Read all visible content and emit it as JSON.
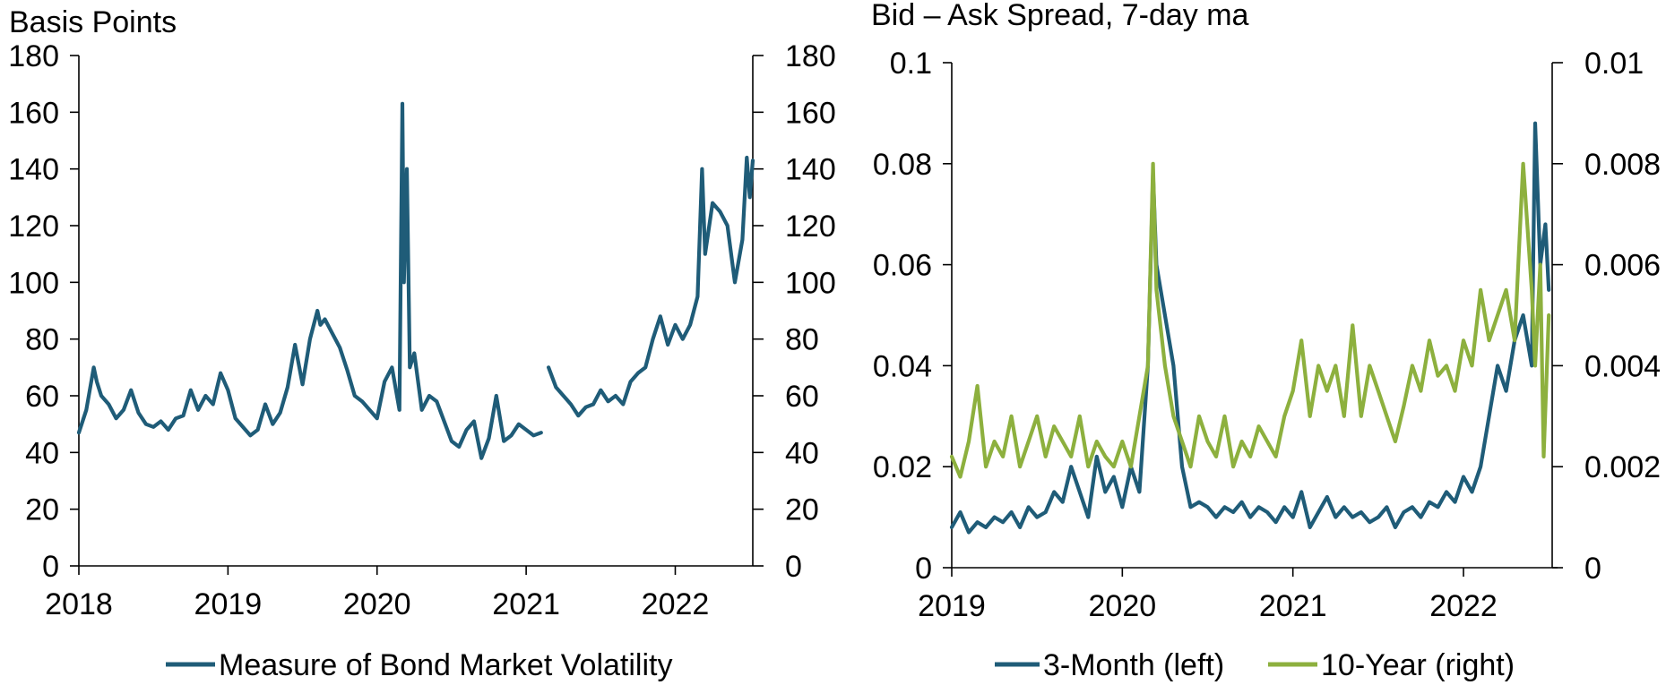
{
  "colors": {
    "teal": "#1f5c78",
    "green": "#8db03e"
  },
  "chart_data": [
    {
      "type": "line",
      "title": "Basis Points",
      "x_ticks": [
        "2018",
        "2019",
        "2020",
        "2021",
        "2022"
      ],
      "y_ticks_left": [
        "0",
        "20",
        "40",
        "60",
        "80",
        "100",
        "120",
        "140",
        "160",
        "180"
      ],
      "y_ticks_right": [
        "0",
        "20",
        "40",
        "60",
        "80",
        "100",
        "120",
        "140",
        "160",
        "180"
      ],
      "xlim": [
        2018.0,
        2022.52
      ],
      "ylim": [
        0,
        180
      ],
      "grid": false,
      "legend": "bottom",
      "series": [
        {
          "name": "Measure of Bond Market Volatility",
          "color": "#1f5c78",
          "x": [
            2018.0,
            2018.05,
            2018.1,
            2018.12,
            2018.15,
            2018.2,
            2018.25,
            2018.3,
            2018.35,
            2018.4,
            2018.45,
            2018.5,
            2018.55,
            2018.6,
            2018.65,
            2018.7,
            2018.75,
            2018.8,
            2018.85,
            2018.9,
            2018.95,
            2019.0,
            2019.05,
            2019.1,
            2019.15,
            2019.2,
            2019.25,
            2019.3,
            2019.35,
            2019.4,
            2019.45,
            2019.5,
            2019.55,
            2019.6,
            2019.62,
            2019.65,
            2019.7,
            2019.75,
            2019.8,
            2019.85,
            2019.9,
            2019.95,
            2020.0,
            2020.05,
            2020.1,
            2020.15,
            2020.17,
            2020.18,
            2020.2,
            2020.22,
            2020.25,
            2020.3,
            2020.35,
            2020.4,
            2020.45,
            2020.5,
            2020.55,
            2020.6,
            2020.65,
            2020.7,
            2020.75,
            2020.8,
            2020.85,
            2020.9,
            2020.95,
            2021.0,
            2021.05,
            2021.1,
            2021.12,
            2021.15,
            2021.2,
            2021.25,
            2021.3,
            2021.35,
            2021.4,
            2021.45,
            2021.5,
            2021.55,
            2021.6,
            2021.65,
            2021.7,
            2021.75,
            2021.8,
            2021.85,
            2021.9,
            2021.95,
            2022.0,
            2022.05,
            2022.1,
            2022.15,
            2022.18,
            2022.2,
            2022.25,
            2022.3,
            2022.35,
            2022.4,
            2022.45,
            2022.48,
            2022.5,
            2022.52
          ],
          "y": [
            47,
            55,
            70,
            65,
            60,
            57,
            52,
            55,
            62,
            54,
            50,
            49,
            51,
            48,
            52,
            53,
            62,
            55,
            60,
            57,
            68,
            62,
            52,
            49,
            46,
            48,
            57,
            50,
            54,
            63,
            78,
            64,
            80,
            90,
            85,
            87,
            82,
            77,
            69,
            60,
            58,
            55,
            52,
            65,
            70,
            55,
            163,
            100,
            140,
            70,
            75,
            55,
            60,
            58,
            51,
            44,
            42,
            48,
            51,
            38,
            45,
            60,
            44,
            46,
            50,
            48,
            46,
            47,
            null,
            70,
            63,
            60,
            57,
            53,
            56,
            57,
            62,
            58,
            60,
            57,
            65,
            68,
            70,
            80,
            88,
            78,
            85,
            80,
            85,
            95,
            140,
            110,
            128,
            125,
            120,
            100,
            115,
            144,
            130,
            143
          ]
        }
      ]
    },
    {
      "type": "line",
      "title": "Bid – Ask Spread, 7-day ma",
      "x_ticks": [
        "2019",
        "2020",
        "2021",
        "2022"
      ],
      "y_ticks_left": [
        "0",
        "0.02",
        "0.04",
        "0.06",
        "0.08",
        "0.1"
      ],
      "y_ticks_right": [
        "0",
        "0.002",
        "0.004",
        "0.006",
        "0.008",
        "0.01"
      ],
      "xlim": [
        2019.0,
        2022.52
      ],
      "ylim_left": [
        0,
        0.1
      ],
      "ylim_right": [
        0,
        0.01
      ],
      "grid": false,
      "legend": "bottom",
      "series": [
        {
          "name": "3-Month (left)",
          "axis": "left",
          "color": "#1f5c78",
          "x": [
            2019.0,
            2019.05,
            2019.1,
            2019.15,
            2019.2,
            2019.25,
            2019.3,
            2019.35,
            2019.4,
            2019.45,
            2019.5,
            2019.55,
            2019.6,
            2019.65,
            2019.7,
            2019.75,
            2019.8,
            2019.85,
            2019.9,
            2019.95,
            2020.0,
            2020.05,
            2020.1,
            2020.15,
            2020.18,
            2020.2,
            2020.25,
            2020.3,
            2020.35,
            2020.4,
            2020.45,
            2020.5,
            2020.55,
            2020.6,
            2020.65,
            2020.7,
            2020.75,
            2020.8,
            2020.85,
            2020.9,
            2020.95,
            2021.0,
            2021.05,
            2021.1,
            2021.15,
            2021.2,
            2021.25,
            2021.3,
            2021.35,
            2021.4,
            2021.45,
            2021.5,
            2021.55,
            2021.6,
            2021.65,
            2021.7,
            2021.75,
            2021.8,
            2021.85,
            2021.9,
            2021.95,
            2022.0,
            2022.05,
            2022.1,
            2022.15,
            2022.2,
            2022.25,
            2022.3,
            2022.35,
            2022.4,
            2022.42,
            2022.45,
            2022.48,
            2022.5
          ],
          "y": [
            0.008,
            0.011,
            0.007,
            0.009,
            0.008,
            0.01,
            0.009,
            0.011,
            0.008,
            0.012,
            0.01,
            0.011,
            0.015,
            0.013,
            0.02,
            0.015,
            0.01,
            0.022,
            0.015,
            0.018,
            0.012,
            0.02,
            0.015,
            0.04,
            0.078,
            0.06,
            0.05,
            0.04,
            0.02,
            0.012,
            0.013,
            0.012,
            0.01,
            0.012,
            0.011,
            0.013,
            0.01,
            0.012,
            0.011,
            0.009,
            0.012,
            0.01,
            0.015,
            0.008,
            0.011,
            0.014,
            0.01,
            0.012,
            0.01,
            0.011,
            0.009,
            0.01,
            0.012,
            0.008,
            0.011,
            0.012,
            0.01,
            0.013,
            0.012,
            0.015,
            0.013,
            0.018,
            0.015,
            0.02,
            0.03,
            0.04,
            0.035,
            0.045,
            0.05,
            0.04,
            0.088,
            0.06,
            0.068,
            0.055
          ]
        },
        {
          "name": "10-Year (right)",
          "axis": "right",
          "color": "#8db03e",
          "x": [
            2019.0,
            2019.05,
            2019.1,
            2019.15,
            2019.2,
            2019.25,
            2019.3,
            2019.35,
            2019.4,
            2019.45,
            2019.5,
            2019.55,
            2019.6,
            2019.65,
            2019.7,
            2019.75,
            2019.8,
            2019.85,
            2019.9,
            2019.95,
            2020.0,
            2020.05,
            2020.1,
            2020.15,
            2020.18,
            2020.2,
            2020.25,
            2020.3,
            2020.35,
            2020.4,
            2020.45,
            2020.5,
            2020.55,
            2020.6,
            2020.65,
            2020.7,
            2020.75,
            2020.8,
            2020.85,
            2020.9,
            2020.95,
            2021.0,
            2021.05,
            2021.1,
            2021.15,
            2021.2,
            2021.25,
            2021.3,
            2021.35,
            2021.4,
            2021.45,
            2021.5,
            2021.55,
            2021.6,
            2021.65,
            2021.7,
            2021.75,
            2021.8,
            2021.85,
            2021.9,
            2021.95,
            2022.0,
            2022.05,
            2022.1,
            2022.15,
            2022.2,
            2022.25,
            2022.3,
            2022.35,
            2022.4,
            2022.42,
            2022.45,
            2022.47,
            2022.5
          ],
          "y": [
            0.0022,
            0.0018,
            0.0025,
            0.0036,
            0.002,
            0.0025,
            0.0022,
            0.003,
            0.002,
            0.0025,
            0.003,
            0.0022,
            0.0028,
            0.0025,
            0.0022,
            0.003,
            0.002,
            0.0025,
            0.0022,
            0.002,
            0.0025,
            0.002,
            0.003,
            0.004,
            0.008,
            0.0055,
            0.004,
            0.003,
            0.0025,
            0.002,
            0.003,
            0.0025,
            0.0022,
            0.003,
            0.002,
            0.0025,
            0.0022,
            0.0028,
            0.0025,
            0.0022,
            0.003,
            0.0035,
            0.0045,
            0.003,
            0.004,
            0.0035,
            0.004,
            0.003,
            0.0048,
            0.003,
            0.004,
            0.0035,
            0.003,
            0.0025,
            0.0032,
            0.004,
            0.0035,
            0.0045,
            0.0038,
            0.004,
            0.0035,
            0.0045,
            0.004,
            0.0055,
            0.0045,
            0.005,
            0.0055,
            0.0045,
            0.008,
            0.0055,
            0.004,
            0.006,
            0.0022,
            0.005
          ]
        }
      ]
    }
  ]
}
